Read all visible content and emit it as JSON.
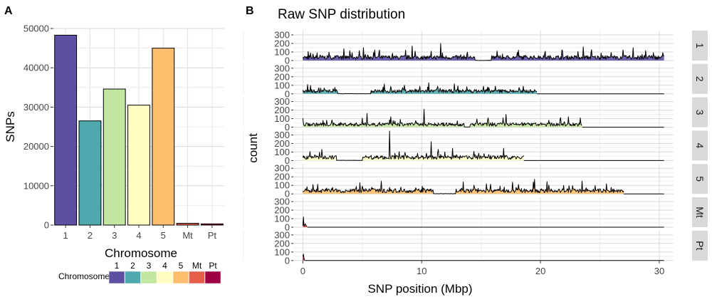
{
  "chart_data": [
    {
      "panel_label": "A",
      "type": "bar",
      "title": "",
      "xlabel": "Chromosome",
      "ylabel": "SNPs",
      "categories": [
        "1",
        "2",
        "3",
        "4",
        "5",
        "Mt",
        "Pt"
      ],
      "values": [
        48300,
        26500,
        34600,
        30500,
        45000,
        450,
        300
      ],
      "colors": [
        "#5E4FA2",
        "#4EA9AE",
        "#C3E6A0",
        "#FFFDC2",
        "#FDBE6E",
        "#E65F4A",
        "#9E0142"
      ],
      "ylim": [
        0,
        50000
      ],
      "yticks": [
        0,
        10000,
        20000,
        30000,
        40000,
        50000
      ],
      "ytick_labels": [
        "0",
        "10000",
        "20000",
        "30000",
        "40000",
        "50000"
      ],
      "grid": true,
      "legend": {
        "title": "Chromosome",
        "position": "bottom",
        "entries": [
          "1",
          "2",
          "3",
          "4",
          "5",
          "Mt",
          "Pt"
        ]
      }
    },
    {
      "panel_label": "B",
      "type": "area",
      "title": "Raw SNP distribution",
      "xlabel": "SNP position (Mbp)",
      "ylabel": "count",
      "xlim": [
        -0.8,
        31.2
      ],
      "xticks": [
        0,
        10,
        20,
        30
      ],
      "xtick_labels": [
        "0",
        "10",
        "20",
        "30"
      ],
      "ylim": [
        0,
        350
      ],
      "yticks": [
        0,
        100,
        200,
        300
      ],
      "ytick_labels": [
        "0",
        "100",
        "200",
        "300"
      ],
      "grid": true,
      "bin_width_mbp": 0.05,
      "facets": [
        {
          "label": "1",
          "color": "#5E4FA2",
          "length_mbp": 30.4,
          "mean_count": 40,
          "gaps": [
            [
              14.5,
              15.9
            ]
          ],
          "peaks": [
            [
              11.6,
              200
            ],
            [
              9.2,
              170
            ],
            [
              23.6,
              160
            ],
            [
              5.1,
              150
            ],
            [
              27.8,
              150
            ]
          ]
        },
        {
          "label": "2",
          "color": "#4EA9AE",
          "length_mbp": 19.7,
          "mean_count": 35,
          "gaps": [
            [
              2.9,
              5.7
            ]
          ],
          "peaks": [
            [
              0.4,
              110
            ],
            [
              10.6,
              130
            ],
            [
              15.2,
              90
            ]
          ]
        },
        {
          "label": "3",
          "color": "#C3E6A0",
          "length_mbp": 23.5,
          "mean_count": 35,
          "gaps": [
            [
              13.6,
              14.1
            ]
          ],
          "peaks": [
            [
              10.2,
              210
            ],
            [
              5.4,
              160
            ],
            [
              17.1,
              150
            ]
          ]
        },
        {
          "label": "4",
          "color": "#FFFDC2",
          "length_mbp": 18.6,
          "mean_count": 40,
          "gaps": [
            [
              2.8,
              5.0
            ]
          ],
          "peaks": [
            [
              7.3,
              345
            ],
            [
              1.6,
              130
            ],
            [
              10.8,
              220
            ]
          ]
        },
        {
          "label": "5",
          "color": "#FDBE6E",
          "length_mbp": 27.0,
          "mean_count": 40,
          "gaps": [
            [
              11.0,
              12.9
            ]
          ],
          "peaks": [
            [
              19.5,
              170
            ],
            [
              6.6,
              150
            ],
            [
              23.5,
              150
            ]
          ]
        },
        {
          "label": "Mt",
          "color": "#E65F4A",
          "length_mbp": 0.37,
          "mean_count": 20,
          "gaps": [],
          "peaks": [
            [
              0.05,
              120
            ],
            [
              0.22,
              40
            ]
          ]
        },
        {
          "label": "Pt",
          "color": "#9E0142",
          "length_mbp": 0.15,
          "mean_count": 15,
          "gaps": [],
          "peaks": [
            [
              0.05,
              75
            ]
          ]
        }
      ]
    }
  ]
}
